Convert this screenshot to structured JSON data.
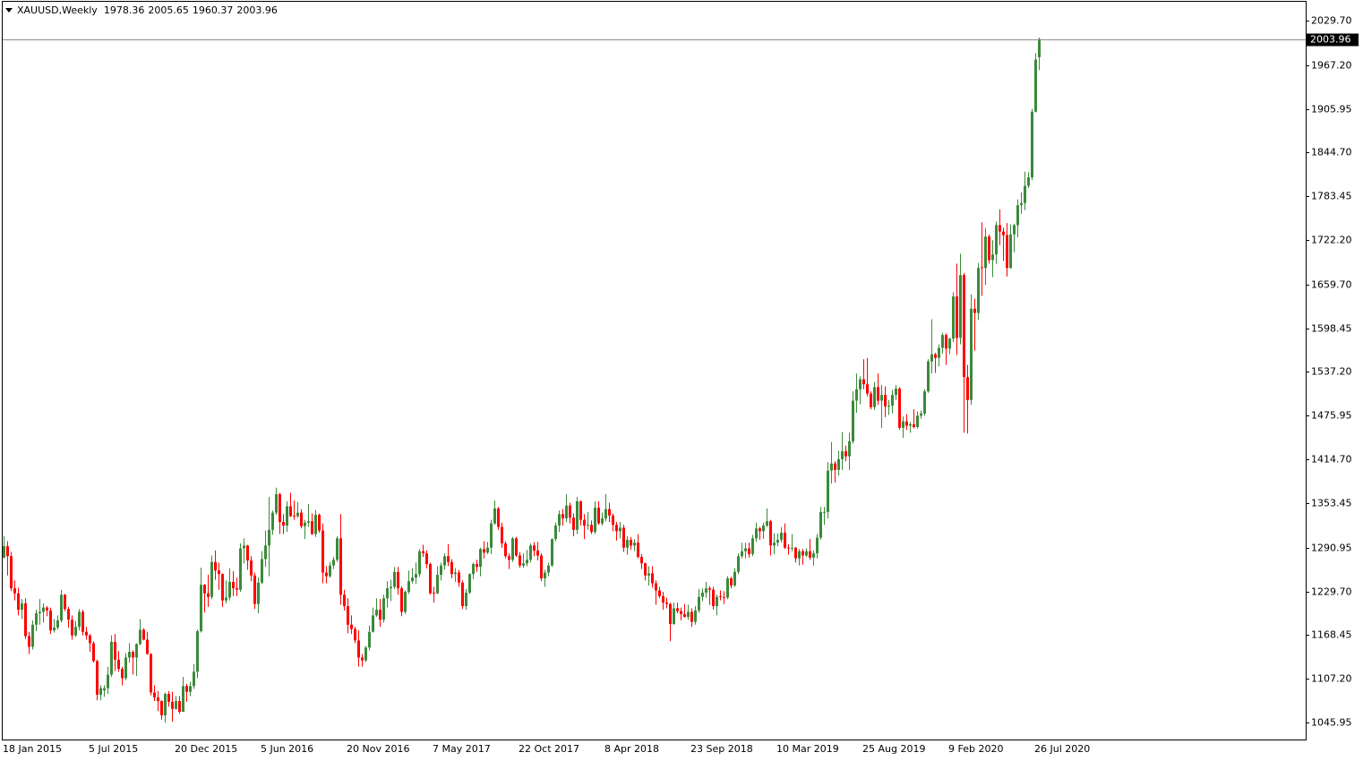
{
  "chart_data": {
    "type": "candlestick",
    "title": "XAUUSD,Weekly",
    "categories": [
      "18 Jan 2015",
      null,
      null,
      null,
      null,
      null,
      null,
      null,
      null,
      null,
      null,
      null,
      null,
      null,
      null,
      null,
      null,
      null,
      null,
      null,
      null,
      null,
      null,
      null,
      "5 Jul 2015",
      null,
      null,
      null,
      null,
      null,
      null,
      null,
      null,
      null,
      null,
      null,
      null,
      null,
      null,
      null,
      null,
      null,
      null,
      null,
      null,
      null,
      null,
      null,
      "20 Dec 2015",
      null,
      null,
      null,
      null,
      null,
      null,
      null,
      null,
      null,
      null,
      null,
      null,
      null,
      null,
      null,
      null,
      null,
      null,
      null,
      null,
      null,
      null,
      null,
      "5 Jun 2016",
      null,
      null,
      null,
      null,
      null,
      null,
      null,
      null,
      null,
      null,
      null,
      null,
      null,
      null,
      null,
      null,
      null,
      null,
      null,
      null,
      null,
      null,
      null,
      "20 Nov 2016",
      null,
      null,
      null,
      null,
      null,
      null,
      null,
      null,
      null,
      null,
      null,
      null,
      null,
      null,
      null,
      null,
      null,
      null,
      null,
      null,
      null,
      null,
      null,
      "7 May 2017",
      null,
      null,
      null,
      null,
      null,
      null,
      null,
      null,
      null,
      null,
      null,
      null,
      null,
      null,
      null,
      null,
      null,
      null,
      null,
      null,
      null,
      null,
      null,
      "22 Oct 2017",
      null,
      null,
      null,
      null,
      null,
      null,
      null,
      null,
      null,
      null,
      null,
      null,
      null,
      null,
      null,
      null,
      null,
      null,
      null,
      null,
      null,
      null,
      null,
      "8 Apr 2018",
      null,
      null,
      null,
      null,
      null,
      null,
      null,
      null,
      null,
      null,
      null,
      null,
      null,
      null,
      null,
      null,
      null,
      null,
      null,
      null,
      null,
      null,
      null,
      "23 Sep 2018",
      null,
      null,
      null,
      null,
      null,
      null,
      null,
      null,
      null,
      null,
      null,
      null,
      null,
      null,
      null,
      null,
      null,
      null,
      null,
      null,
      null,
      null,
      null,
      "10 Mar 2019",
      null,
      null,
      null,
      null,
      null,
      null,
      null,
      null,
      null,
      null,
      null,
      null,
      null,
      null,
      null,
      null,
      null,
      null,
      null,
      null,
      null,
      null,
      null,
      "25 Aug 2019",
      null,
      null,
      null,
      null,
      null,
      null,
      null,
      null,
      null,
      null,
      null,
      null,
      null,
      null,
      null,
      null,
      null,
      null,
      null,
      null,
      null,
      null,
      null,
      "9 Feb 2020",
      null,
      null,
      null,
      null,
      null,
      null,
      null,
      null,
      null,
      null,
      null,
      null,
      null,
      null,
      null,
      null,
      null,
      null,
      null,
      null,
      null,
      null,
      null,
      "26 Jul 2020",
      null
    ],
    "open": [
      1277,
      1293,
      1279,
      1234,
      1227,
      1204,
      1213,
      1167,
      1152,
      1183,
      1199,
      1201,
      1207,
      1203,
      1175,
      1179,
      1189,
      1225,
      1205,
      1190,
      1168,
      1180,
      1201,
      1173,
      1168,
      1157,
      1132,
      1085,
      1091,
      1094,
      1113,
      1159,
      1134,
      1121,
      1108,
      1137,
      1145,
      1137,
      1156,
      1176,
      1162,
      1142,
      1088,
      1081,
      1076,
      1056,
      1086,
      1075,
      1065,
      1076,
      1061,
      1097,
      1089,
      1097,
      1117,
      1174,
      1239,
      1227,
      1222,
      1271,
      1259,
      1254,
      1217,
      1221,
      1243,
      1234,
      1232,
      1290,
      1294,
      1273,
      1252,
      1212,
      1242,
      1275,
      1294,
      1316,
      1340,
      1366,
      1327,
      1322,
      1349,
      1336,
      1335,
      1340,
      1321,
      1326,
      1328,
      1310,
      1337,
      1315,
      1256,
      1251,
      1266,
      1274,
      1304,
      1225,
      1209,
      1183,
      1177,
      1161,
      1137,
      1133,
      1151,
      1173,
      1196,
      1204,
      1190,
      1220,
      1234,
      1236,
      1257,
      1234,
      1201,
      1229,
      1244,
      1249,
      1254,
      1286,
      1283,
      1268,
      1228,
      1227,
      1253,
      1266,
      1279,
      1271,
      1254,
      1256,
      1242,
      1209,
      1228,
      1254,
      1268,
      1264,
      1289,
      1284,
      1291,
      1325,
      1346,
      1320,
      1297,
      1279,
      1274,
      1304,
      1280,
      1266,
      1269,
      1274,
      1294,
      1287,
      1280,
      1248,
      1256,
      1266,
      1303,
      1322,
      1338,
      1332,
      1350,
      1333,
      1316,
      1356,
      1330,
      1322,
      1323,
      1313,
      1347,
      1325,
      1332,
      1345,
      1336,
      1323,
      1314,
      1319,
      1291,
      1302,
      1294,
      1298,
      1278,
      1269,
      1252,
      1255,
      1241,
      1231,
      1223,
      1214,
      1212,
      1184,
      1206,
      1202,
      1198,
      1194,
      1201,
      1187,
      1203,
      1222,
      1228,
      1234,
      1232,
      1209,
      1223,
      1222,
      1221,
      1248,
      1238,
      1257,
      1279,
      1286,
      1290,
      1282,
      1304,
      1318,
      1314,
      1322,
      1328,
      1294,
      1298,
      1302,
      1312,
      1291,
      1290,
      1291,
      1276,
      1286,
      1280,
      1286,
      1277,
      1283,
      1305,
      1340,
      1341,
      1399,
      1409,
      1400,
      1415,
      1426,
      1419,
      1440,
      1497,
      1513,
      1527,
      1520,
      1507,
      1488,
      1516,
      1497,
      1505,
      1489,
      1490,
      1505,
      1514,
      1459,
      1468,
      1462,
      1464,
      1460,
      1476,
      1479,
      1510,
      1552,
      1562,
      1557,
      1571,
      1589,
      1570,
      1584,
      1643,
      1585,
      1673,
      1530,
      1498,
      1626,
      1620,
      1684,
      1683,
      1727,
      1694,
      1702,
      1743,
      1734,
      1729,
      1683,
      1730,
      1743,
      1771,
      1774,
      1798,
      1810,
      1902,
      1978.36
    ],
    "high": [
      1307,
      1300,
      1285,
      1245,
      1235,
      1219,
      1220,
      1173,
      1189,
      1204,
      1219,
      1213,
      1209,
      1207,
      1191,
      1196,
      1232,
      1226,
      1208,
      1196,
      1188,
      1205,
      1204,
      1180,
      1170,
      1160,
      1134,
      1098,
      1098,
      1124,
      1168,
      1170,
      1146,
      1124,
      1143,
      1157,
      1147,
      1157,
      1191,
      1178,
      1173,
      1143,
      1098,
      1090,
      1077,
      1088,
      1090,
      1089,
      1083,
      1083,
      1110,
      1100,
      1103,
      1128,
      1176,
      1263,
      1240,
      1253,
      1280,
      1287,
      1270,
      1255,
      1245,
      1262,
      1258,
      1249,
      1297,
      1304,
      1295,
      1279,
      1256,
      1249,
      1286,
      1315,
      1362,
      1343,
      1375,
      1368,
      1338,
      1356,
      1368,
      1357,
      1355,
      1345,
      1330,
      1352,
      1339,
      1344,
      1339,
      1325,
      1265,
      1271,
      1278,
      1307,
      1338,
      1232,
      1220,
      1196,
      1180,
      1175,
      1142,
      1153,
      1182,
      1207,
      1220,
      1219,
      1225,
      1244,
      1246,
      1264,
      1264,
      1237,
      1231,
      1259,
      1262,
      1270,
      1289,
      1295,
      1287,
      1270,
      1236,
      1265,
      1270,
      1283,
      1296,
      1275,
      1262,
      1260,
      1245,
      1233,
      1255,
      1270,
      1274,
      1291,
      1300,
      1299,
      1330,
      1357,
      1348,
      1326,
      1300,
      1283,
      1306,
      1306,
      1285,
      1283,
      1288,
      1297,
      1299,
      1299,
      1283,
      1260,
      1270,
      1304,
      1326,
      1343,
      1345,
      1366,
      1354,
      1339,
      1362,
      1357,
      1338,
      1341,
      1329,
      1356,
      1356,
      1340,
      1366,
      1354,
      1339,
      1327,
      1327,
      1323,
      1307,
      1306,
      1303,
      1310,
      1282,
      1270,
      1265,
      1265,
      1245,
      1236,
      1229,
      1221,
      1214,
      1214,
      1214,
      1207,
      1212,
      1211,
      1206,
      1209,
      1233,
      1234,
      1243,
      1237,
      1236,
      1225,
      1231,
      1230,
      1251,
      1250,
      1262,
      1283,
      1298,
      1298,
      1298,
      1309,
      1326,
      1320,
      1326,
      1346,
      1330,
      1311,
      1311,
      1320,
      1325,
      1296,
      1310,
      1292,
      1289,
      1289,
      1290,
      1303,
      1287,
      1310,
      1348,
      1348,
      1411,
      1439,
      1412,
      1427,
      1453,
      1434,
      1452,
      1510,
      1535,
      1531,
      1555,
      1557,
      1510,
      1523,
      1535,
      1519,
      1517,
      1498,
      1512,
      1519,
      1516,
      1475,
      1478,
      1467,
      1485,
      1482,
      1483,
      1513,
      1555,
      1611,
      1564,
      1576,
      1592,
      1591,
      1585,
      1649,
      1689,
      1703,
      1676,
      1547,
      1646,
      1640,
      1690,
      1747,
      1739,
      1730,
      1722,
      1748,
      1765,
      1739,
      1746,
      1744,
      1745,
      1779,
      1789,
      1818,
      1817,
      1906,
      1984,
      2005.65
    ],
    "low": [
      1276,
      1252,
      1230,
      1217,
      1196,
      1191,
      1163,
      1142,
      1148,
      1174,
      1183,
      1186,
      1195,
      1170,
      1172,
      1176,
      1186,
      1202,
      1179,
      1162,
      1166,
      1175,
      1168,
      1162,
      1145,
      1130,
      1077,
      1077,
      1082,
      1086,
      1110,
      1118,
      1117,
      1098,
      1105,
      1130,
      1113,
      1111,
      1154,
      1161,
      1141,
      1084,
      1076,
      1062,
      1050,
      1046,
      1068,
      1047,
      1064,
      1058,
      1061,
      1075,
      1083,
      1093,
      1108,
      1172,
      1200,
      1208,
      1219,
      1246,
      1232,
      1208,
      1213,
      1217,
      1223,
      1223,
      1229,
      1269,
      1260,
      1244,
      1205,
      1199,
      1240,
      1264,
      1251,
      1309,
      1337,
      1310,
      1310,
      1313,
      1334,
      1330,
      1333,
      1318,
      1303,
      1320,
      1309,
      1306,
      1312,
      1241,
      1241,
      1249,
      1261,
      1271,
      1211,
      1203,
      1171,
      1170,
      1157,
      1124,
      1124,
      1131,
      1147,
      1172,
      1194,
      1180,
      1186,
      1207,
      1216,
      1233,
      1225,
      1195,
      1198,
      1226,
      1241,
      1240,
      1250,
      1278,
      1262,
      1225,
      1214,
      1226,
      1245,
      1260,
      1265,
      1248,
      1243,
      1236,
      1205,
      1204,
      1226,
      1247,
      1257,
      1251,
      1276,
      1282,
      1282,
      1323,
      1316,
      1291,
      1276,
      1261,
      1271,
      1278,
      1263,
      1263,
      1265,
      1270,
      1279,
      1273,
      1244,
      1236,
      1251,
      1264,
      1300,
      1313,
      1322,
      1327,
      1325,
      1307,
      1310,
      1322,
      1303,
      1316,
      1310,
      1310,
      1323,
      1322,
      1328,
      1327,
      1314,
      1301,
      1304,
      1285,
      1281,
      1288,
      1286,
      1276,
      1261,
      1245,
      1238,
      1235,
      1211,
      1220,
      1204,
      1206,
      1160,
      1183,
      1199,
      1189,
      1193,
      1190,
      1180,
      1183,
      1200,
      1216,
      1221,
      1211,
      1204,
      1196,
      1217,
      1212,
      1219,
      1234,
      1236,
      1254,
      1276,
      1276,
      1277,
      1279,
      1299,
      1302,
      1303,
      1320,
      1280,
      1282,
      1293,
      1298,
      1289,
      1281,
      1286,
      1270,
      1266,
      1267,
      1278,
      1274,
      1266,
      1276,
      1302,
      1323,
      1332,
      1381,
      1382,
      1392,
      1400,
      1412,
      1400,
      1437,
      1480,
      1492,
      1513,
      1503,
      1485,
      1484,
      1491,
      1459,
      1474,
      1477,
      1479,
      1498,
      1456,
      1445,
      1456,
      1452,
      1458,
      1458,
      1472,
      1476,
      1508,
      1535,
      1536,
      1545,
      1563,
      1547,
      1562,
      1579,
      1561,
      1576,
      1452,
      1451,
      1491,
      1567,
      1610,
      1644,
      1659,
      1689,
      1670,
      1689,
      1715,
      1693,
      1671,
      1682,
      1705,
      1726,
      1759,
      1764,
      1795,
      1806,
      1901,
      1960.37
    ],
    "close": [
      1293,
      1279,
      1234,
      1227,
      1204,
      1213,
      1167,
      1152,
      1183,
      1199,
      1201,
      1207,
      1203,
      1175,
      1179,
      1189,
      1225,
      1205,
      1190,
      1168,
      1180,
      1201,
      1173,
      1168,
      1157,
      1132,
      1085,
      1094,
      1094,
      1113,
      1159,
      1134,
      1121,
      1108,
      1137,
      1145,
      1137,
      1156,
      1176,
      1162,
      1142,
      1088,
      1081,
      1076,
      1056,
      1086,
      1075,
      1065,
      1076,
      1061,
      1097,
      1089,
      1097,
      1117,
      1174,
      1239,
      1227,
      1222,
      1271,
      1259,
      1254,
      1217,
      1221,
      1243,
      1234,
      1232,
      1290,
      1294,
      1273,
      1252,
      1212,
      1242,
      1275,
      1294,
      1316,
      1340,
      1366,
      1327,
      1322,
      1349,
      1335,
      1335,
      1340,
      1321,
      1326,
      1328,
      1310,
      1337,
      1315,
      1256,
      1251,
      1266,
      1274,
      1304,
      1225,
      1209,
      1183,
      1177,
      1161,
      1137,
      1133,
      1151,
      1173,
      1196,
      1204,
      1190,
      1220,
      1234,
      1236,
      1257,
      1234,
      1201,
      1229,
      1244,
      1249,
      1254,
      1286,
      1283,
      1268,
      1227,
      1227,
      1253,
      1266,
      1279,
      1271,
      1254,
      1256,
      1242,
      1209,
      1228,
      1254,
      1268,
      1264,
      1289,
      1284,
      1291,
      1325,
      1346,
      1320,
      1297,
      1279,
      1274,
      1304,
      1280,
      1266,
      1269,
      1274,
      1294,
      1287,
      1280,
      1248,
      1256,
      1266,
      1303,
      1322,
      1338,
      1332,
      1350,
      1333,
      1316,
      1356,
      1330,
      1322,
      1323,
      1313,
      1347,
      1325,
      1332,
      1345,
      1336,
      1323,
      1314,
      1319,
      1291,
      1302,
      1294,
      1298,
      1278,
      1269,
      1252,
      1255,
      1241,
      1231,
      1223,
      1214,
      1212,
      1184,
      1206,
      1202,
      1198,
      1194,
      1201,
      1187,
      1203,
      1222,
      1228,
      1234,
      1232,
      1209,
      1222,
      1222,
      1221,
      1248,
      1238,
      1257,
      1279,
      1286,
      1290,
      1282,
      1304,
      1318,
      1314,
      1322,
      1328,
      1294,
      1298,
      1302,
      1312,
      1291,
      1290,
      1291,
      1276,
      1286,
      1280,
      1286,
      1277,
      1283,
      1305,
      1341,
      1341,
      1399,
      1409,
      1400,
      1415,
      1426,
      1419,
      1440,
      1497,
      1513,
      1527,
      1520,
      1507,
      1488,
      1516,
      1497,
      1505,
      1489,
      1490,
      1505,
      1514,
      1459,
      1468,
      1462,
      1464,
      1460,
      1476,
      1479,
      1510,
      1552,
      1562,
      1557,
      1571,
      1589,
      1570,
      1584,
      1643,
      1585,
      1673,
      1530,
      1498,
      1626,
      1620,
      1683,
      1683,
      1727,
      1694,
      1702,
      1743,
      1734,
      1729,
      1683,
      1730,
      1743,
      1771,
      1774,
      1798,
      1810,
      1902,
      1975,
      2003.96
    ],
    "up_color": "#3a8a3a",
    "down_color": "#ff0000",
    "ylim": [
      1022.1,
      2057.3
    ],
    "yticks": [
      {
        "value": 1045.95,
        "label": "1045.95"
      },
      {
        "value": 1107.2,
        "label": "1107.20"
      },
      {
        "value": 1168.45,
        "label": "1168.45"
      },
      {
        "value": 1229.7,
        "label": "1229.70"
      },
      {
        "value": 1290.95,
        "label": "1290.95"
      },
      {
        "value": 1353.45,
        "label": "1353.45"
      },
      {
        "value": 1414.7,
        "label": "1414.70"
      },
      {
        "value": 1475.95,
        "label": "1475.95"
      },
      {
        "value": 1537.2,
        "label": "1537.20"
      },
      {
        "value": 1598.45,
        "label": "1598.45"
      },
      {
        "value": 1659.7,
        "label": "1659.70"
      },
      {
        "value": 1722.2,
        "label": "1722.20"
      },
      {
        "value": 1783.45,
        "label": "1783.45"
      },
      {
        "value": 1844.7,
        "label": "1844.70"
      },
      {
        "value": 1905.95,
        "label": "1905.95"
      },
      {
        "value": 1967.2,
        "label": "1967.20"
      },
      {
        "value": 2029.7,
        "label": "2029.70"
      }
    ],
    "last_price_line": true
  }
}
